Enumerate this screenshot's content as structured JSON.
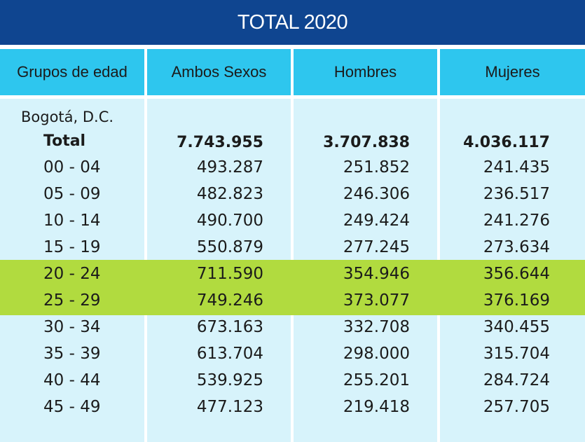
{
  "title": "TOTAL 2020",
  "headers": [
    "Grupos de edad",
    "Ambos Sexos",
    "Hombres",
    "Mujeres"
  ],
  "region": "Bogotá, D.C.",
  "total": {
    "label": "Total",
    "ambos": "7.743.955",
    "hombres": "3.707.838",
    "mujeres": "4.036.117"
  },
  "rows": [
    {
      "grupo": "00 - 04",
      "ambos": "493.287",
      "hombres": "251.852",
      "mujeres": "241.435"
    },
    {
      "grupo": "05 - 09",
      "ambos": "482.823",
      "hombres": "246.306",
      "mujeres": "236.517"
    },
    {
      "grupo": "10 - 14",
      "ambos": "490.700",
      "hombres": "249.424",
      "mujeres": "241.276"
    },
    {
      "grupo": "15 - 19",
      "ambos": "550.879",
      "hombres": "277.245",
      "mujeres": "273.634"
    },
    {
      "grupo": "20 - 24",
      "ambos": "711.590",
      "hombres": "354.946",
      "mujeres": "356.644"
    },
    {
      "grupo": "25 - 29",
      "ambos": "749.246",
      "hombres": "373.077",
      "mujeres": "376.169"
    },
    {
      "grupo": "30 - 34",
      "ambos": "673.163",
      "hombres": "332.708",
      "mujeres": "340.455"
    },
    {
      "grupo": "35 - 39",
      "ambos": "613.704",
      "hombres": "298.000",
      "mujeres": "315.704"
    },
    {
      "grupo": "40 - 44",
      "ambos": "539.925",
      "hombres": "255.201",
      "mujeres": "284.724"
    },
    {
      "grupo": "45 - 49",
      "ambos": "477.123",
      "hombres": "219.418",
      "mujeres": "257.705"
    }
  ],
  "colors": {
    "title_bg": "#0f4590",
    "header_bg": "#2ec6ee",
    "body_bg": "#d7f3fb",
    "highlight": "#b1db3f"
  }
}
